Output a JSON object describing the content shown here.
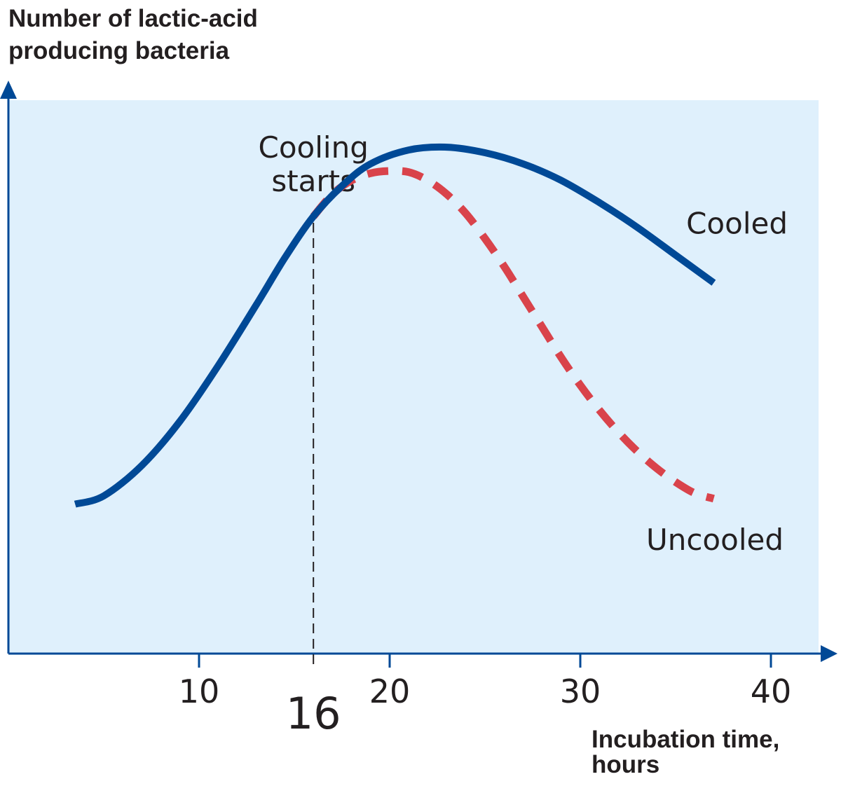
{
  "chart_data": {
    "type": "line",
    "title": "",
    "ylabel": "Number of lactic-acid producing bacteria",
    "ylabel_lines": [
      "Number of lactic-acid",
      "producing bacteria"
    ],
    "xlabel": "Incubation time, hours",
    "xlabel_lines": [
      "Incubation time,",
      "hours"
    ],
    "xlim": [
      0,
      42.5
    ],
    "ylim": [
      0,
      100
    ],
    "x_ticks": [
      10,
      20,
      30,
      40
    ],
    "x_tick_labels": [
      "10",
      "20",
      "30",
      "40"
    ],
    "marker": {
      "x": 16,
      "label": "16",
      "annotation_lines": [
        "Cooling",
        "starts"
      ]
    },
    "y_axis_values_shown": false,
    "series": [
      {
        "name": "Cooled",
        "style": "solid",
        "color": "#004996",
        "points": [
          [
            3.5,
            27
          ],
          [
            5,
            28.5
          ],
          [
            7,
            34
          ],
          [
            9,
            42
          ],
          [
            11,
            52
          ],
          [
            13,
            63
          ],
          [
            14.5,
            71.5
          ],
          [
            16,
            79
          ],
          [
            17.5,
            84.5
          ],
          [
            19,
            88.5
          ],
          [
            21,
            91
          ],
          [
            23,
            91.5
          ],
          [
            25,
            90.5
          ],
          [
            27,
            88.5
          ],
          [
            29,
            85.5
          ],
          [
            31,
            81.5
          ],
          [
            33,
            77
          ],
          [
            35,
            72
          ],
          [
            37,
            67
          ]
        ]
      },
      {
        "name": "Uncooled",
        "style": "dashed",
        "color": "#d9434b",
        "points": [
          [
            16,
            79
          ],
          [
            17,
            83
          ],
          [
            18,
            85.5
          ],
          [
            19,
            86.8
          ],
          [
            20,
            87.2
          ],
          [
            21,
            87
          ],
          [
            22,
            85.5
          ],
          [
            23,
            83
          ],
          [
            24,
            79.5
          ],
          [
            25,
            75
          ],
          [
            26,
            70
          ],
          [
            27,
            64.5
          ],
          [
            28,
            59
          ],
          [
            29,
            53.5
          ],
          [
            30,
            48.5
          ],
          [
            31,
            44
          ],
          [
            32,
            40
          ],
          [
            33,
            36.5
          ],
          [
            34,
            33.5
          ],
          [
            35,
            31
          ],
          [
            36,
            29
          ],
          [
            37,
            28
          ]
        ]
      }
    ],
    "series_label_positions": [
      "right-of-end, above",
      "right-of-end, below"
    ],
    "background_color": "#dff0fc",
    "axis_color": "#004996",
    "marker_line_color": "#231f20"
  }
}
